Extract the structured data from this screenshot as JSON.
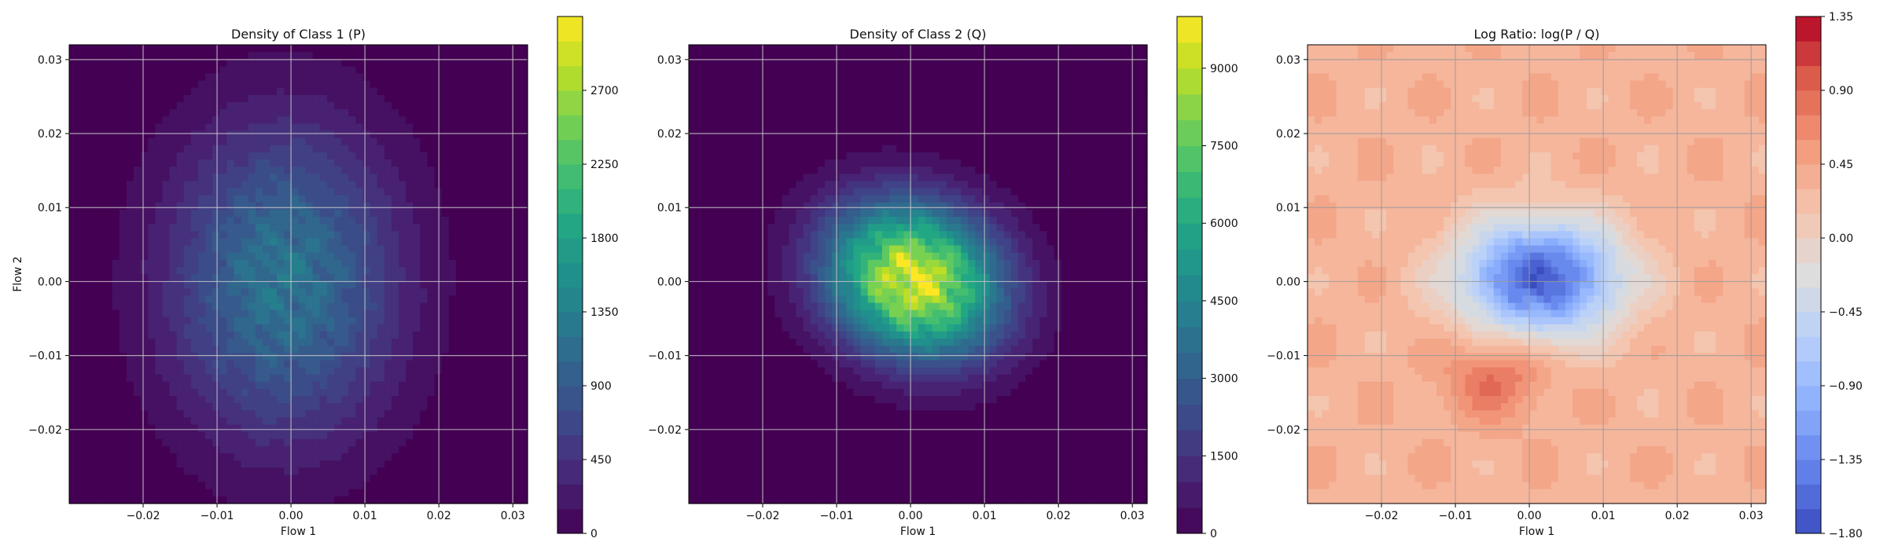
{
  "chart_data": [
    {
      "type": "heatmap",
      "title": "Density of Class 1 (P)",
      "xlabel": "Flow 1",
      "ylabel": "Flow 2",
      "xlim": [
        -0.03,
        0.032
      ],
      "ylim": [
        -0.03,
        0.032
      ],
      "xticks": [
        -0.02,
        -0.01,
        0.0,
        0.01,
        0.02,
        0.03
      ],
      "xtick_labels": [
        "−0.02",
        "−0.01",
        "0.00",
        "0.01",
        "0.02",
        "0.03"
      ],
      "yticks": [
        -0.02,
        -0.01,
        0.0,
        0.01,
        0.02,
        0.03
      ],
      "ytick_labels": [
        "−0.02",
        "−0.01",
        "0.00",
        "0.01",
        "0.02",
        "0.03"
      ],
      "grid": true,
      "colormap": "viridis",
      "colorbar": {
        "vmin": 0,
        "vmax": 3150,
        "ticks": [
          0,
          450,
          900,
          1350,
          1800,
          2250,
          2700
        ],
        "tick_labels": [
          "0",
          "450",
          "900",
          "1350",
          "1800",
          "2250",
          "2700"
        ],
        "levels": 21
      },
      "density_model": {
        "kind": "gaussian-blob",
        "center": [
          -0.001,
          0.0
        ],
        "spread": [
          0.011,
          0.015
        ],
        "peak": 1300,
        "rotation_deg": 0
      }
    },
    {
      "type": "heatmap",
      "title": "Density of Class 2 (Q)",
      "xlabel": "Flow 1",
      "ylabel": "",
      "xlim": [
        -0.03,
        0.032
      ],
      "ylim": [
        -0.03,
        0.032
      ],
      "xticks": [
        -0.02,
        -0.01,
        0.0,
        0.01,
        0.02,
        0.03
      ],
      "xtick_labels": [
        "−0.02",
        "−0.01",
        "0.00",
        "0.01",
        "0.02",
        "0.03"
      ],
      "yticks": [
        -0.02,
        -0.01,
        0.0,
        0.01,
        0.02,
        0.03
      ],
      "ytick_labels": [
        "−0.02",
        "−0.01",
        "0.00",
        "0.01",
        "0.02",
        "0.03"
      ],
      "grid": true,
      "colormap": "viridis",
      "colorbar": {
        "vmin": 0,
        "vmax": 10000,
        "ticks": [
          0,
          1500,
          3000,
          4500,
          6000,
          7500,
          9000
        ],
        "tick_labels": [
          "0",
          "1500",
          "3000",
          "4500",
          "6000",
          "7500",
          "9000"
        ],
        "levels": 20
      },
      "density_model": {
        "kind": "gaussian-blob",
        "center": [
          0.0005,
          0.0002
        ],
        "spread": [
          0.0085,
          0.007
        ],
        "peak": 9800,
        "rotation_deg": -25
      }
    },
    {
      "type": "heatmap",
      "title": "Log Ratio: log(P / Q)",
      "xlabel": "Flow 1",
      "ylabel": "",
      "xlim": [
        -0.03,
        0.032
      ],
      "ylim": [
        -0.03,
        0.032
      ],
      "xticks": [
        -0.02,
        -0.01,
        0.0,
        0.01,
        0.02,
        0.03
      ],
      "xtick_labels": [
        "−0.02",
        "−0.01",
        "0.00",
        "0.01",
        "0.02",
        "0.03"
      ],
      "yticks": [
        -0.02,
        -0.01,
        0.0,
        0.01,
        0.02,
        0.03
      ],
      "ytick_labels": [
        "−0.02",
        "−0.01",
        "0.00",
        "0.01",
        "0.02",
        "0.03"
      ],
      "grid": true,
      "colormap": "coolwarm",
      "colorbar": {
        "vmin": -1.8,
        "vmax": 1.35,
        "ticks": [
          -1.8,
          -1.35,
          -0.9,
          -0.45,
          0.0,
          0.45,
          0.9,
          1.35
        ],
        "tick_labels": [
          "−1.80",
          "−1.35",
          "−0.90",
          "−0.45",
          "0.00",
          "0.45",
          "0.90",
          "1.35"
        ],
        "levels": 21
      },
      "density_model": {
        "kind": "log-ratio",
        "background": 0.4,
        "negative_center": [
          0.0015,
          0.0005
        ],
        "negative_spread": [
          0.0075,
          0.0055
        ],
        "negative_peak": -1.6,
        "positive_lobes": [
          {
            "center": [
              -0.0045,
              -0.0125
            ],
            "spread": [
              0.005,
              0.004
            ],
            "peak": 0.95
          },
          {
            "center": [
              0.003,
              0.012
            ],
            "spread": [
              0.005,
              0.004
            ],
            "peak": 0.45
          }
        ]
      }
    }
  ]
}
